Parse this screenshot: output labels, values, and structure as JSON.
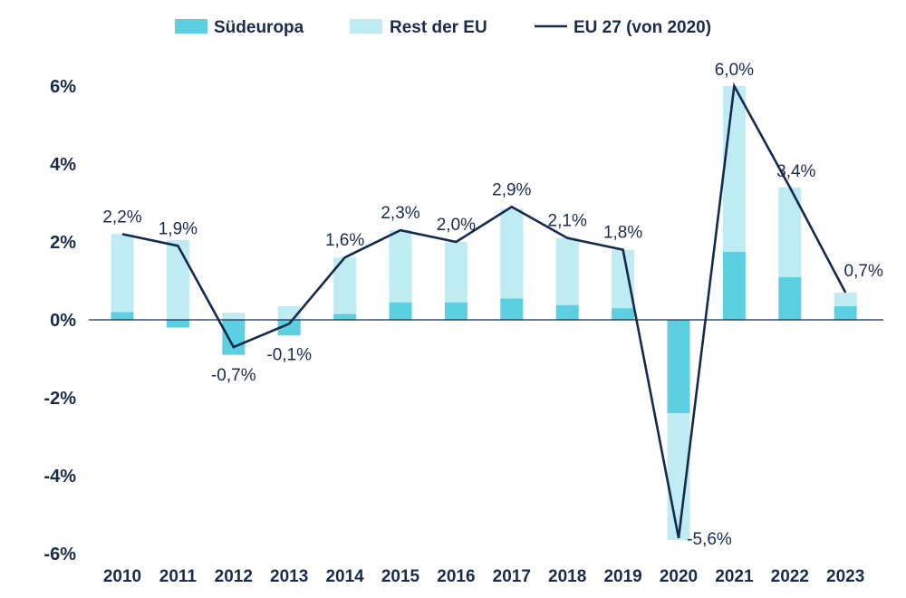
{
  "chart_data": {
    "type": "bar",
    "stacked": true,
    "categories": [
      "2010",
      "2011",
      "2012",
      "2013",
      "2014",
      "2015",
      "2016",
      "2017",
      "2018",
      "2019",
      "2020",
      "2021",
      "2022",
      "2023"
    ],
    "series": [
      {
        "name": "Südeuropa",
        "kind": "bar",
        "color": "#5ccfe0",
        "values": [
          0.2,
          -0.2,
          -0.9,
          -0.4,
          0.15,
          0.45,
          0.45,
          0.55,
          0.38,
          0.3,
          -2.4,
          1.75,
          1.1,
          0.35
        ]
      },
      {
        "name": "Rest der EU",
        "kind": "bar",
        "color": "#bfebf2",
        "values": [
          2.0,
          2.05,
          0.18,
          0.35,
          1.45,
          1.85,
          1.55,
          2.3,
          1.72,
          1.5,
          -3.25,
          4.25,
          2.3,
          0.35
        ]
      },
      {
        "name": "EU 27 (von 2020)",
        "kind": "line",
        "color": "#162a4d",
        "values": [
          2.2,
          1.9,
          -0.7,
          -0.1,
          1.6,
          2.3,
          2.0,
          2.9,
          2.1,
          1.8,
          -5.6,
          6.0,
          3.4,
          0.7
        ]
      }
    ],
    "data_labels": [
      "2,2%",
      "1,9%",
      "-0,7%",
      "-0,1%",
      "1,6%",
      "2,3%",
      "2,0%",
      "2,9%",
      "2,1%",
      "1,8%",
      "-5,6%",
      "6,0%",
      "3,4%",
      "0,7%"
    ],
    "ylim": [
      -6,
      6
    ],
    "yticks": [
      6,
      4,
      2,
      0,
      -2,
      -4,
      -6
    ],
    "ytick_labels": [
      "6%",
      "4%",
      "2%",
      "0%",
      "-2%",
      "-4%",
      "-6%"
    ],
    "legend_position": "top-center",
    "grid": false
  }
}
